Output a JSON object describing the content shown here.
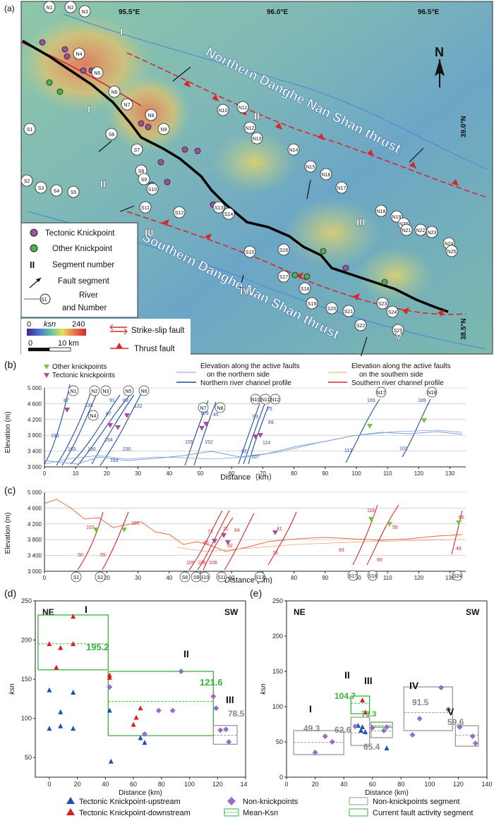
{
  "map": {
    "panel_label": "(a)",
    "lon_labels": [
      "95.5°E",
      "96.0°E",
      "96.5°E"
    ],
    "lat_labels": [
      "39.0°N",
      "38.5°N"
    ],
    "north_label": "N",
    "north_thrust_label": "Northern Danghe Nan Shan thrust",
    "south_thrust_label": "Southern Danghe Nan Shan thrust",
    "segments": [
      "I",
      "II",
      "III",
      "IV",
      "V",
      "I",
      "II",
      "III"
    ],
    "north_nodes": [
      "N1",
      "N2",
      "N3",
      "N4",
      "N5",
      "N6",
      "N7",
      "N8",
      "N9",
      "N10",
      "N11",
      "N12",
      "N13",
      "N14",
      "N15",
      "N16",
      "N17",
      "N18",
      "N19",
      "N20",
      "N21",
      "N22",
      "N23",
      "N24",
      "N25"
    ],
    "south_nodes": [
      "S1",
      "S2",
      "S3",
      "S4",
      "S5",
      "S6",
      "S7",
      "S8",
      "S9",
      "S10",
      "S11",
      "S12",
      "S13",
      "S14",
      "S15",
      "S16",
      "S17",
      "S18",
      "S19",
      "S20",
      "S21",
      "S22",
      "S23",
      "S24",
      "S25"
    ],
    "legend": {
      "tectonic_knickpoint": "Tectonic Knickpoint",
      "other_knickpoint": "Other Knickpoint",
      "segment_number_symbol": "II",
      "segment_number": "Segment number",
      "fault_segment": "Fault segment",
      "river_label_line1": "River",
      "river_label_line2": "and Number",
      "river_symbol": "S1",
      "ksn_label": "ksn",
      "ksn_min": "0",
      "ksn_max": "240",
      "scale_zero": "0",
      "scale_km": "10 km",
      "strike_slip": "Strike-slip fault",
      "thrust": "Thrust fault"
    }
  },
  "panel_b": {
    "label": "(b)",
    "legend": {
      "other_knickpoints": "Other knickpoints",
      "tectonic_knickpoints": "Tectonic knickpoints",
      "north_elev_line1": "Elevation along the active faults",
      "north_elev_line2": "on the northern side",
      "north_profile": "Northern river channel profile",
      "south_elev_line1": "Elevation along the active faults",
      "south_elev_line2": "on the southern side",
      "south_profile": "Southern river channel profile"
    },
    "ylabel": "Elevation (m)",
    "xlabel": "Distance（km）",
    "y_ticks": [
      "5 000",
      "4 600",
      "4 200",
      "3 800",
      "3 400",
      "3 000"
    ],
    "x_ticks": [
      "0",
      "10",
      "20",
      "30",
      "40",
      "50",
      "60",
      "70",
      "80",
      "90",
      "100",
      "110",
      "120",
      "130"
    ],
    "nodes": [
      "N1",
      "N2",
      "N3",
      "N5",
      "N6",
      "N4",
      "N7",
      "N8",
      "N10",
      "N11",
      "N12",
      "N17",
      "N18"
    ],
    "values": [
      "87",
      "135",
      "91",
      "89",
      "132",
      "87",
      "109",
      "45",
      "75",
      "93",
      "69",
      "169",
      "189",
      "195",
      "165",
      "190",
      "194",
      "230",
      "193",
      "155",
      "152",
      "92",
      "114",
      "107",
      "113",
      "101"
    ]
  },
  "panel_c": {
    "label": "(c)",
    "ylabel": "Elevation (m)",
    "xlabel": "Distance (km)",
    "y_ticks": [
      "5 000",
      "4 600",
      "4 200",
      "3 800",
      "3 400",
      "3 000"
    ],
    "x_ticks": [
      "0",
      "10",
      "20",
      "30",
      "40",
      "50",
      "60",
      "70",
      "80",
      "90",
      "100",
      "110",
      "120",
      "130"
    ],
    "nodes": [
      "S1",
      "S2",
      "S8",
      "S9",
      "S10",
      "S11",
      "S13",
      "S17",
      "S18",
      "S24"
    ],
    "values": [
      "107",
      "101",
      "50",
      "55",
      "72",
      "71",
      "64",
      "66",
      "92",
      "41",
      "109",
      "106",
      "108",
      "73",
      "116",
      "95",
      "66",
      "83",
      "69",
      "46"
    ]
  },
  "panel_d": {
    "label": "(d)",
    "ne": "NE",
    "sw": "SW",
    "ylabel": "ksn",
    "xlabel": "Distance (km)",
    "y_ticks": [
      "250",
      "200",
      "150",
      "100",
      "50"
    ],
    "x_ticks": [
      "0",
      "20",
      "40",
      "60",
      "80",
      "100",
      "120",
      "140"
    ],
    "segments": [
      {
        "name": "I",
        "mean": "195.2"
      },
      {
        "name": "II",
        "mean": "121.6"
      },
      {
        "name": "III",
        "mean": "78.5"
      }
    ]
  },
  "panel_e": {
    "label": "(e)",
    "ne": "NE",
    "sw": "SW",
    "ylabel": "ksn",
    "xlabel": "Distance (km)",
    "y_ticks": [
      "250",
      "200",
      "150",
      "100",
      "50",
      "0"
    ],
    "x_ticks": [
      "0",
      "20",
      "40",
      "60",
      "80",
      "100",
      "120",
      "140"
    ],
    "segments": [
      {
        "name": "I",
        "mean": "49.3"
      },
      {
        "name": "II",
        "mean": "104.7",
        "mean2": "62.6"
      },
      {
        "name": "III",
        "mean": "73.3",
        "mean2": "65.4"
      },
      {
        "name": "IV",
        "mean": "91.5"
      },
      {
        "name": "V",
        "mean": "59.6"
      }
    ]
  },
  "bottom_legend": {
    "tk_up": "Tectonic Knickpoint-upstream",
    "tk_down": "Tectonic Knickpoint-downstream",
    "non_knick": "Non-knickpoints",
    "mean_ksn": "Mean-Ksn",
    "non_knick_seg": "Non-knickpoints segment",
    "current_seg": "Current fault activity segment"
  },
  "chart_data": [
    {
      "type": "scatter",
      "panel": "d",
      "xlabel": "Distance (km)",
      "ylabel": "ksn",
      "xlim": [
        -10,
        140
      ],
      "ylim": [
        25,
        250
      ],
      "series": [
        {
          "name": "Tectonic Knickpoint-upstream",
          "color": "#1f4fb5",
          "marker": "triangle",
          "x": [
            0,
            8,
            17,
            0,
            8,
            17,
            43,
            44,
            65,
            68
          ],
          "y": [
            87,
            90,
            87,
            136,
            108,
            133,
            110,
            45,
            75,
            69
          ]
        },
        {
          "name": "Tectonic Knickpoint-downstream",
          "color": "#d81e1e",
          "marker": "triangle",
          "x": [
            0,
            8,
            17,
            17,
            5,
            43,
            43,
            60,
            62,
            65
          ],
          "y": [
            195,
            190,
            230,
            195,
            165,
            155,
            152,
            92,
            101,
            113
          ]
        },
        {
          "name": "Non-knickpoints",
          "color": "#9b6bc8",
          "marker": "diamond",
          "x": [
            43,
            68,
            78,
            88,
            94,
            117,
            119,
            122,
            126,
            128
          ],
          "y": [
            140,
            80,
            110,
            110,
            160,
            128,
            113,
            85,
            86,
            70
          ]
        }
      ],
      "mean_lines": [
        {
          "segment": "I",
          "x": [
            -8,
            42
          ],
          "mean": 195.2,
          "box_y": [
            162,
            232
          ]
        },
        {
          "segment": "II",
          "x": [
            42,
            117
          ],
          "mean": 121.6,
          "box_y": [
            78,
            160
          ]
        },
        {
          "segment": "III",
          "x": [
            117,
            134
          ],
          "mean": 78.5,
          "box_y": [
            67,
            91
          ]
        }
      ]
    },
    {
      "type": "scatter",
      "panel": "e",
      "xlabel": "Distance (km)",
      "ylabel": "ksn",
      "xlim": [
        0,
        140
      ],
      "ylim": [
        0,
        250
      ],
      "series": [
        {
          "name": "Tectonic Knickpoint-upstream",
          "color": "#1f4fb5",
          "marker": "triangle",
          "x": [
            50,
            52,
            53,
            55,
            70
          ],
          "y": [
            73,
            66,
            71,
            64,
            41
          ]
        },
        {
          "name": "Tectonic Knickpoint-downstream",
          "color": "#d81e1e",
          "marker": "triangle",
          "x": [
            53,
            55
          ],
          "y": [
            109,
            92
          ]
        },
        {
          "name": "Non-knickpoints",
          "color": "#9b6bc8",
          "marker": "diamond",
          "x": [
            20,
            27,
            32,
            48,
            60,
            68,
            70,
            88,
            93,
            108,
            113,
            121,
            130,
            132
          ],
          "y": [
            35,
            58,
            50,
            72,
            70,
            66,
            71,
            60,
            83,
            127,
            96,
            71,
            58,
            48
          ]
        }
      ],
      "mean_lines": [
        {
          "segment": "I",
          "x": [
            5,
            40
          ],
          "mean": 49.3,
          "box_y": [
            32,
            66
          ]
        },
        {
          "segment": "II-current",
          "x": [
            45,
            58
          ],
          "mean": 104.7,
          "box_y": [
            90,
            115
          ]
        },
        {
          "segment": "II",
          "x": [
            45,
            58
          ],
          "mean": 62.6,
          "box_y": [
            45,
            85
          ]
        },
        {
          "segment": "III-current",
          "x": [
            59,
            74
          ],
          "mean": 73.3,
          "box_y": [
            71,
            78
          ]
        },
        {
          "segment": "III",
          "x": [
            59,
            74
          ],
          "mean": 65.4,
          "box_y": [
            56,
            78
          ]
        },
        {
          "segment": "IV",
          "x": [
            82,
            116
          ],
          "mean": 91.5,
          "box_y": [
            66,
            128
          ]
        },
        {
          "segment": "V",
          "x": [
            118,
            134
          ],
          "mean": 59.6,
          "box_y": [
            44,
            73
          ]
        }
      ]
    }
  ]
}
